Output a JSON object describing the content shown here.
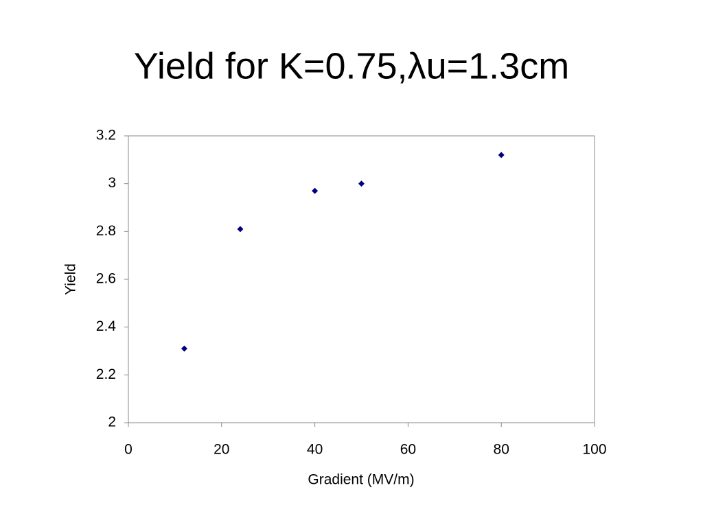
{
  "chart_data": {
    "type": "scatter",
    "title": "Yield for K=0.75,λu=1.3cm",
    "x_label": "Gradient (MV/m)",
    "y_label": "Yield",
    "series": [
      {
        "name": "Yield",
        "color": "#000080",
        "x": [
          12,
          24,
          40,
          50,
          80
        ],
        "values": [
          2.31,
          2.81,
          2.97,
          3.0,
          3.12
        ]
      }
    ],
    "xlim": [
      0,
      100
    ],
    "xticks": [
      0,
      20,
      40,
      60,
      80,
      100
    ],
    "ylim": [
      2,
      3.2
    ],
    "yticks": [
      2,
      2.2,
      2.4,
      2.6,
      2.8,
      3,
      3.2
    ],
    "grid": false,
    "legend": false
  }
}
